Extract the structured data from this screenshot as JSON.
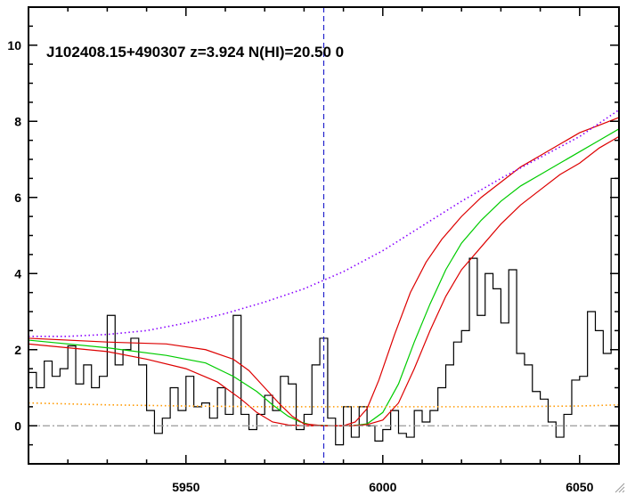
{
  "chart_data": {
    "type": "line",
    "title": "J102408.15+490307 z=3.924 N(HI)=20.50 0",
    "xlabel": "",
    "ylabel": "",
    "xlim": [
      5910,
      6060
    ],
    "ylim": [
      -1,
      11
    ],
    "x_ticks": [
      5950,
      6000,
      6050
    ],
    "x_tick_labels": [
      "5950",
      "6000",
      "6050"
    ],
    "y_ticks": [
      0,
      2,
      4,
      6,
      8,
      10
    ],
    "y_tick_labels": [
      "0",
      "2",
      "4",
      "6",
      "8",
      "10"
    ],
    "grid": false,
    "legend": "none",
    "marker_line_x": 5985,
    "series": [
      {
        "style": "histogram",
        "color": "#000000",
        "x": [
          5910,
          5912,
          5914,
          5916,
          5918,
          5920,
          5922,
          5924,
          5926,
          5928,
          5930,
          5932,
          5934,
          5936,
          5938,
          5940,
          5942,
          5944,
          5946,
          5948,
          5950,
          5952,
          5954,
          5956,
          5958,
          5960,
          5962,
          5964,
          5966,
          5968,
          5970,
          5972,
          5974,
          5976,
          5978,
          5980,
          5982,
          5984,
          5986,
          5988,
          5990,
          5992,
          5994,
          5996,
          5998,
          6000,
          6002,
          6004,
          6006,
          6008,
          6010,
          6012,
          6014,
          6016,
          6018,
          6020,
          6022,
          6024,
          6026,
          6028,
          6030,
          6032,
          6034,
          6036,
          6038,
          6040,
          6042,
          6044,
          6046,
          6048,
          6050,
          6052,
          6054,
          6056,
          6058
        ],
        "y": [
          1.4,
          1.0,
          1.7,
          1.3,
          1.5,
          2.1,
          1.1,
          1.6,
          1.0,
          1.3,
          2.9,
          1.6,
          2.0,
          2.3,
          1.6,
          0.4,
          -0.2,
          0.2,
          1.0,
          0.4,
          1.3,
          0.5,
          0.6,
          0.2,
          1.0,
          0.3,
          2.9,
          0.3,
          -0.1,
          0.3,
          0.8,
          0.4,
          1.3,
          1.1,
          -0.1,
          0.3,
          1.6,
          2.3,
          0.2,
          -0.5,
          0.5,
          -0.3,
          0.5,
          0.0,
          -0.4,
          -0.1,
          0.4,
          -0.2,
          -0.3,
          0.4,
          0.1,
          0.4,
          1.0,
          1.6,
          2.2,
          2.5,
          4.4,
          2.9,
          4.0,
          3.6,
          2.7,
          4.1,
          1.9,
          1.6,
          0.9,
          0.7,
          0.1,
          -0.3,
          0.3,
          1.2,
          1.3,
          3.0,
          2.5,
          1.9,
          6.5
        ]
      },
      {
        "style": "line",
        "color": "#00cc00",
        "x": [
          5910,
          5930,
          5945,
          5955,
          5962,
          5968,
          5972,
          5976,
          5979,
          5982,
          5988,
          5992,
          5996,
          6000,
          6004,
          6008,
          6012,
          6016,
          6020,
          6025,
          6030,
          6035,
          6040,
          6045,
          6050,
          6055,
          6060
        ],
        "y": [
          2.25,
          2.05,
          1.85,
          1.65,
          1.3,
          0.9,
          0.55,
          0.25,
          0.1,
          0.02,
          0.0,
          0.0,
          0.05,
          0.35,
          1.1,
          2.2,
          3.2,
          4.1,
          4.8,
          5.4,
          5.9,
          6.3,
          6.6,
          6.9,
          7.2,
          7.5,
          7.8
        ]
      },
      {
        "style": "line",
        "color": "#dd0000",
        "x": [
          5910,
          5930,
          5945,
          5955,
          5962,
          5966,
          5970,
          5974,
          5977,
          5980,
          5985,
          5990,
          5993,
          5996,
          5999,
          6003,
          6007,
          6011,
          6015,
          6020,
          6025,
          6030,
          6035,
          6040,
          6045,
          6050,
          6055,
          6060
        ],
        "y": [
          2.3,
          2.2,
          2.15,
          2.0,
          1.75,
          1.45,
          1.0,
          0.55,
          0.25,
          0.05,
          0.0,
          0.0,
          0.1,
          0.45,
          1.2,
          2.4,
          3.5,
          4.3,
          4.9,
          5.5,
          6.0,
          6.4,
          6.8,
          7.1,
          7.4,
          7.7,
          7.9,
          8.1
        ]
      },
      {
        "style": "line",
        "color": "#dd0000",
        "x": [
          5910,
          5930,
          5940,
          5950,
          5958,
          5964,
          5968,
          5972,
          5976,
          5980,
          5986,
          5992,
          5996,
          6000,
          6004,
          6008,
          6012,
          6016,
          6020,
          6025,
          6030,
          6035,
          6040,
          6045,
          6050,
          6055,
          6060
        ],
        "y": [
          2.15,
          1.95,
          1.75,
          1.5,
          1.15,
          0.7,
          0.35,
          0.1,
          0.02,
          0.0,
          0.0,
          0.0,
          0.03,
          0.15,
          0.6,
          1.5,
          2.5,
          3.4,
          4.1,
          4.7,
          5.3,
          5.8,
          6.2,
          6.6,
          6.9,
          7.3,
          7.6
        ]
      },
      {
        "style": "dotted",
        "color": "#8800ff",
        "x": [
          5910,
          5920,
          5930,
          5940,
          5950,
          5960,
          5970,
          5980,
          5990,
          6000,
          6010,
          6020,
          6030,
          6040,
          6050,
          6060
        ],
        "y": [
          2.35,
          2.35,
          2.4,
          2.5,
          2.7,
          2.95,
          3.25,
          3.6,
          4.05,
          4.6,
          5.25,
          5.9,
          6.5,
          7.05,
          7.6,
          8.3
        ]
      },
      {
        "style": "dotted",
        "color": "#ff9900",
        "x": [
          5910,
          5930,
          5950,
          5970,
          5990,
          6010,
          6030,
          6050,
          6060
        ],
        "y": [
          0.6,
          0.55,
          0.52,
          0.5,
          0.5,
          0.5,
          0.5,
          0.52,
          0.55
        ]
      },
      {
        "style": "dashdot",
        "color": "#999999",
        "x": [
          5910,
          6060
        ],
        "y": [
          0,
          0
        ]
      }
    ]
  }
}
